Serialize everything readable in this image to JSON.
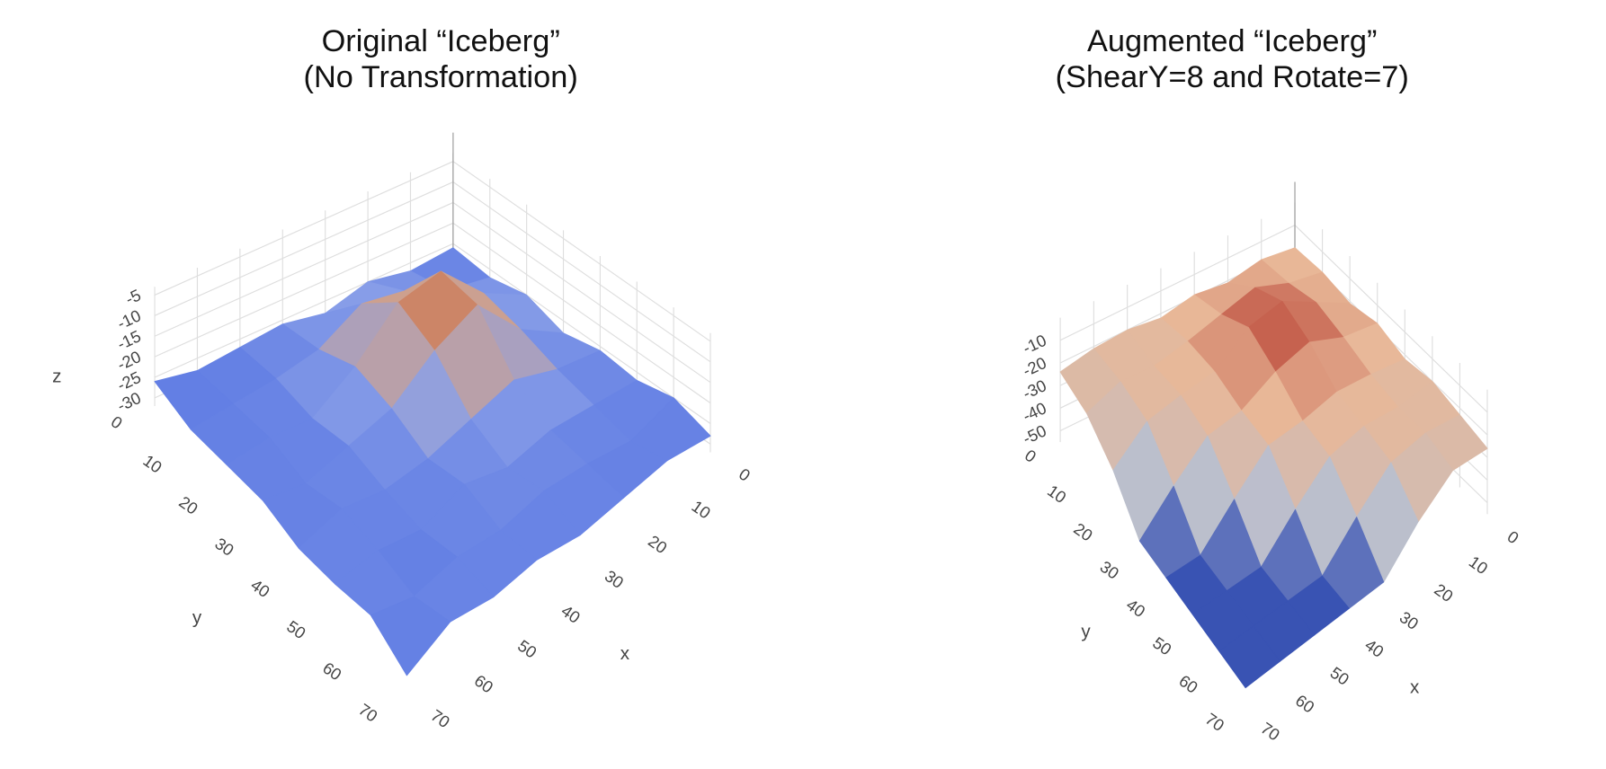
{
  "chart_data": [
    {
      "type": "surface",
      "title": [
        "Original “Iceberg”",
        "(No Transformation)"
      ],
      "x_label": "x",
      "y_label": "y",
      "z_label": "z",
      "x": [
        0,
        10,
        20,
        30,
        40,
        50,
        60,
        70
      ],
      "y": [
        0,
        10,
        20,
        30,
        40,
        50,
        60,
        70
      ],
      "z": [
        [
          -26,
          -27,
          -25,
          -28,
          -26,
          -27,
          -28,
          -26
        ],
        [
          -27,
          -25,
          -20,
          -18,
          -24,
          -26,
          -27,
          -28
        ],
        [
          -25,
          -19,
          -8,
          -10,
          -20,
          -27,
          -26,
          -27
        ],
        [
          -28,
          -21,
          -9,
          -14,
          -22,
          -25,
          -28,
          -26
        ],
        [
          -26,
          -24,
          -20,
          -23,
          -26,
          -27,
          -25,
          -28
        ],
        [
          -27,
          -26,
          -25,
          -27,
          -24,
          -28,
          -26,
          -27
        ],
        [
          -25,
          -28,
          -26,
          -25,
          -27,
          -26,
          -28,
          -25
        ],
        [
          -28,
          -26,
          -27,
          -28,
          -26,
          -27,
          -25,
          -30
        ]
      ],
      "xlim": [
        0,
        70
      ],
      "ylim": [
        0,
        70
      ],
      "zlim": [
        -32,
        -3
      ],
      "xticks": [
        0,
        10,
        20,
        30,
        40,
        50,
        60,
        70
      ],
      "yticks": [
        0,
        10,
        20,
        30,
        40,
        50,
        60,
        70
      ],
      "zticks": [
        -30,
        -25,
        -20,
        -15,
        -10,
        -5
      ],
      "colorscale": [
        "#3d5fe0",
        "#8aa0e8",
        "#d8a080",
        "#a8321c"
      ],
      "grid": true
    },
    {
      "type": "surface",
      "title": [
        "Augmented “Iceberg”",
        "(ShearY=8 and Rotate=7)"
      ],
      "x_label": "x",
      "y_label": "y",
      "x": [
        0,
        10,
        20,
        30,
        40,
        50,
        60,
        70
      ],
      "y": [
        0,
        10,
        20,
        30,
        40,
        50,
        60,
        70
      ],
      "z": [
        [
          -20,
          -18,
          -21,
          -19,
          -22,
          -20,
          -21,
          -24
        ],
        [
          -19,
          -16,
          -10,
          -14,
          -18,
          -21,
          -20,
          -26
        ],
        [
          -21,
          -12,
          -3,
          -6,
          -17,
          -19,
          -22,
          -35
        ],
        [
          -18,
          -15,
          -8,
          -12,
          -20,
          -22,
          -35,
          -50
        ],
        [
          -22,
          -19,
          -17,
          -20,
          -21,
          -35,
          -50,
          -50
        ],
        [
          -20,
          -21,
          -19,
          -22,
          -35,
          -50,
          -50,
          -50
        ],
        [
          -23,
          -20,
          -22,
          -35,
          -50,
          -50,
          -50,
          -50
        ],
        [
          -26,
          -24,
          -35,
          -50,
          -50,
          -50,
          -50,
          -50
        ]
      ],
      "xlim": [
        0,
        70
      ],
      "ylim": [
        0,
        70
      ],
      "zlim": [
        -55,
        0
      ],
      "xticks": [
        0,
        10,
        20,
        30,
        40,
        50,
        60,
        70
      ],
      "yticks": [
        0,
        10,
        20,
        30,
        40,
        50,
        60,
        70
      ],
      "zticks": [
        -50,
        -40,
        -30,
        -20,
        -10
      ],
      "colorscale": [
        "#0a2aa8",
        "#b8bfd0",
        "#e8b898",
        "#b02a20"
      ],
      "grid": true
    }
  ]
}
